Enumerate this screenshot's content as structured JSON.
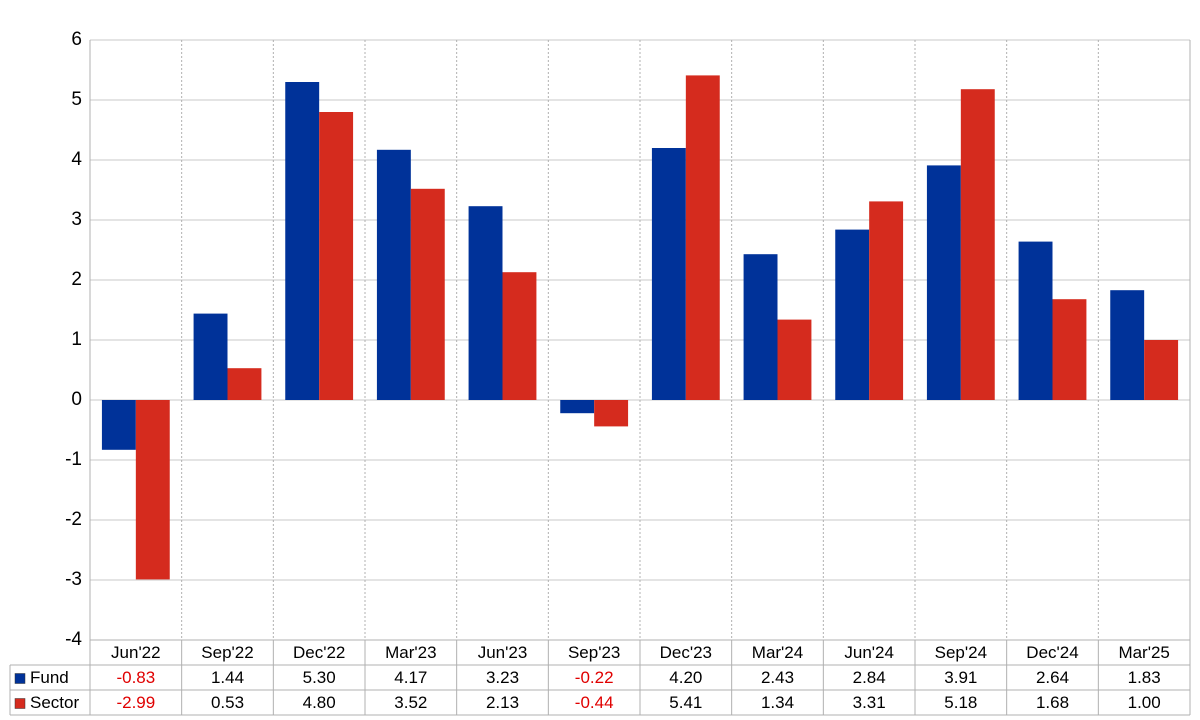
{
  "chart_data": {
    "type": "bar",
    "categories": [
      "Jun'22",
      "Sep'22",
      "Dec'22",
      "Mar'23",
      "Jun'23",
      "Sep'23",
      "Dec'23",
      "Mar'24",
      "Jun'24",
      "Sep'24",
      "Dec'24",
      "Mar'25"
    ],
    "series": [
      {
        "name": "Fund",
        "color": "#003299",
        "values": [
          -0.83,
          1.44,
          5.3,
          4.17,
          3.23,
          -0.22,
          4.2,
          2.43,
          2.84,
          3.91,
          2.64,
          1.83
        ],
        "value_labels": [
          "-0.83",
          "1.44",
          "5.30",
          "4.17",
          "3.23",
          "-0.22",
          "4.20",
          "2.43",
          "2.84",
          "3.91",
          "2.64",
          "1.83"
        ]
      },
      {
        "name": "Sector",
        "color": "#d52b1e",
        "values": [
          -2.99,
          0.53,
          4.8,
          3.52,
          2.13,
          -0.44,
          5.41,
          1.34,
          3.31,
          5.18,
          1.68,
          1.0
        ],
        "value_labels": [
          "-2.99",
          "0.53",
          "4.80",
          "3.52",
          "2.13",
          "-0.44",
          "5.41",
          "1.34",
          "3.31",
          "5.18",
          "1.68",
          "1.00"
        ]
      }
    ],
    "ylim": [
      -4,
      6
    ],
    "yticks": [
      -4,
      -3,
      -2,
      -1,
      0,
      1,
      2,
      3,
      4,
      5,
      6
    ],
    "grid": true
  }
}
